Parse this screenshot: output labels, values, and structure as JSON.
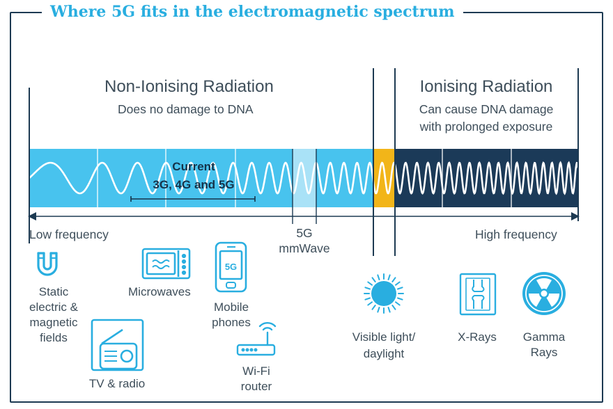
{
  "title": "Where 5G fits in the electromagnetic spectrum",
  "colors": {
    "accent": "#29aee0",
    "non_ionising_band": "#48c3ee",
    "mmwave_band": "#a9e2f7",
    "visible_band": "#f2b519",
    "ionising_band": "#1b3a58",
    "frame": "#1d3a52"
  },
  "regions": {
    "non_ionising": {
      "title": "Non-Ionising Radiation",
      "subtitle": "Does no damage to DNA"
    },
    "ionising": {
      "title": "Ionising Radiation",
      "subtitle_line1": "Can cause DNA damage",
      "subtitle_line2": "with prolonged exposure"
    }
  },
  "band_labels": {
    "current_line1": "Current",
    "current_line2": "3G, 4G and 5G",
    "mmwave_line1": "5G",
    "mmwave_line2": "mmWave"
  },
  "axis": {
    "low": "Low frequency",
    "high": "High frequency"
  },
  "sources": {
    "static": {
      "icon": "magnet-icon",
      "line1": "Static",
      "line2": "electric &",
      "line3": "magnetic",
      "line4": "fields"
    },
    "tv_radio": {
      "icon": "tv-radio-icon",
      "label": "TV & radio"
    },
    "microwaves": {
      "icon": "microwave-icon",
      "label": "Microwaves"
    },
    "mobile": {
      "icon": "mobile-phone-icon",
      "screen_text": "5G",
      "line1": "Mobile",
      "line2": "phones"
    },
    "wifi": {
      "icon": "wifi-router-icon",
      "line1": "Wi-Fi",
      "line2": "router"
    },
    "visible": {
      "icon": "sun-icon",
      "line1": "Visible light/",
      "line2": "daylight"
    },
    "xrays": {
      "icon": "xray-icon",
      "label": "X-Rays"
    },
    "gamma": {
      "icon": "radiation-icon",
      "line1": "Gamma",
      "line2": "Rays"
    }
  }
}
